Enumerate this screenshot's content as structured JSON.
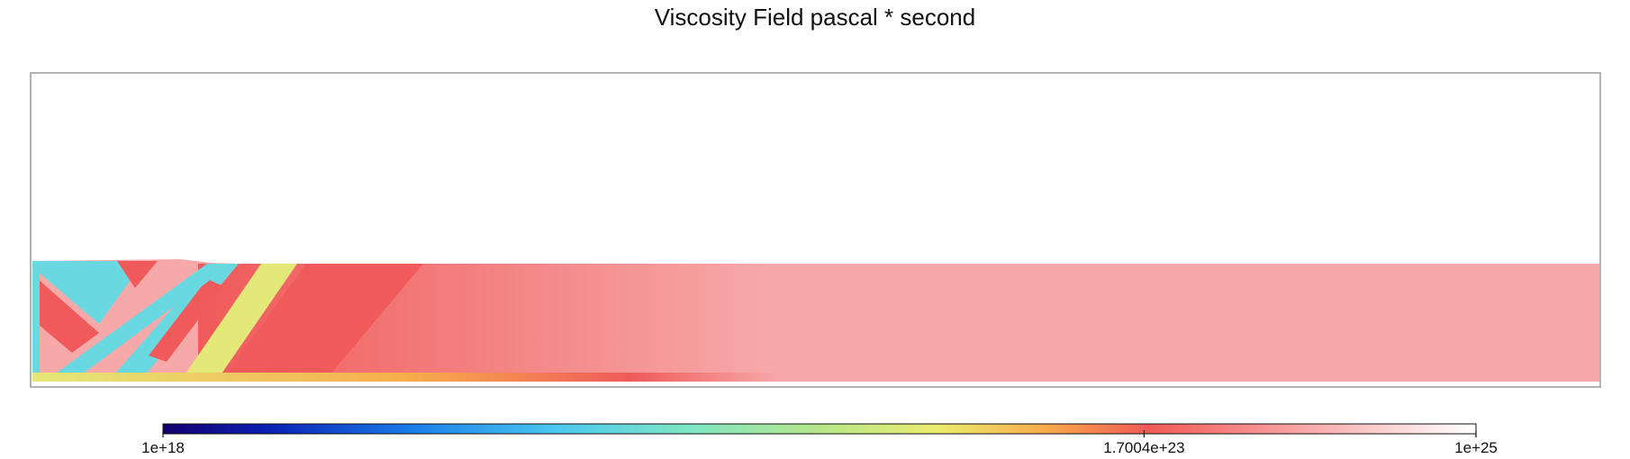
{
  "chart_data": {
    "type": "heatmap",
    "title": "Viscosity Field pascal * second",
    "quantity": "viscosity",
    "unit": "pascal * second",
    "scale": "log",
    "colormap": "rainbow-to-white",
    "colorbar": {
      "orientation": "horizontal",
      "placement": "bottom",
      "range": [
        1e+18,
        1e+25
      ],
      "ticks": [
        {
          "value": 1e+18,
          "label": "1e+18"
        },
        {
          "value": 1.7004e+23,
          "label": "1.7004e+23"
        },
        {
          "value": 1e+25,
          "label": "1e+25"
        }
      ],
      "stops": [
        {
          "t": 0.0,
          "color": "#14006e"
        },
        {
          "t": 0.08,
          "color": "#0a1fb4"
        },
        {
          "t": 0.19,
          "color": "#1a7ee8"
        },
        {
          "t": 0.3,
          "color": "#4cc8f0"
        },
        {
          "t": 0.4,
          "color": "#7ee6c4"
        },
        {
          "t": 0.5,
          "color": "#b6e68a"
        },
        {
          "t": 0.59,
          "color": "#ecec6e"
        },
        {
          "t": 0.67,
          "color": "#f7ad4c"
        },
        {
          "t": 0.75,
          "color": "#f05a55"
        },
        {
          "t": 0.87,
          "color": "#f8a8a8"
        },
        {
          "t": 1.0,
          "color": "#ffffff"
        }
      ]
    },
    "field_colors": {
      "background": "#f7a9a9",
      "strong": "#f05a5a",
      "weak": "#6ad8e0",
      "transition": "#e4e878"
    },
    "grid": false,
    "legend": "none"
  }
}
